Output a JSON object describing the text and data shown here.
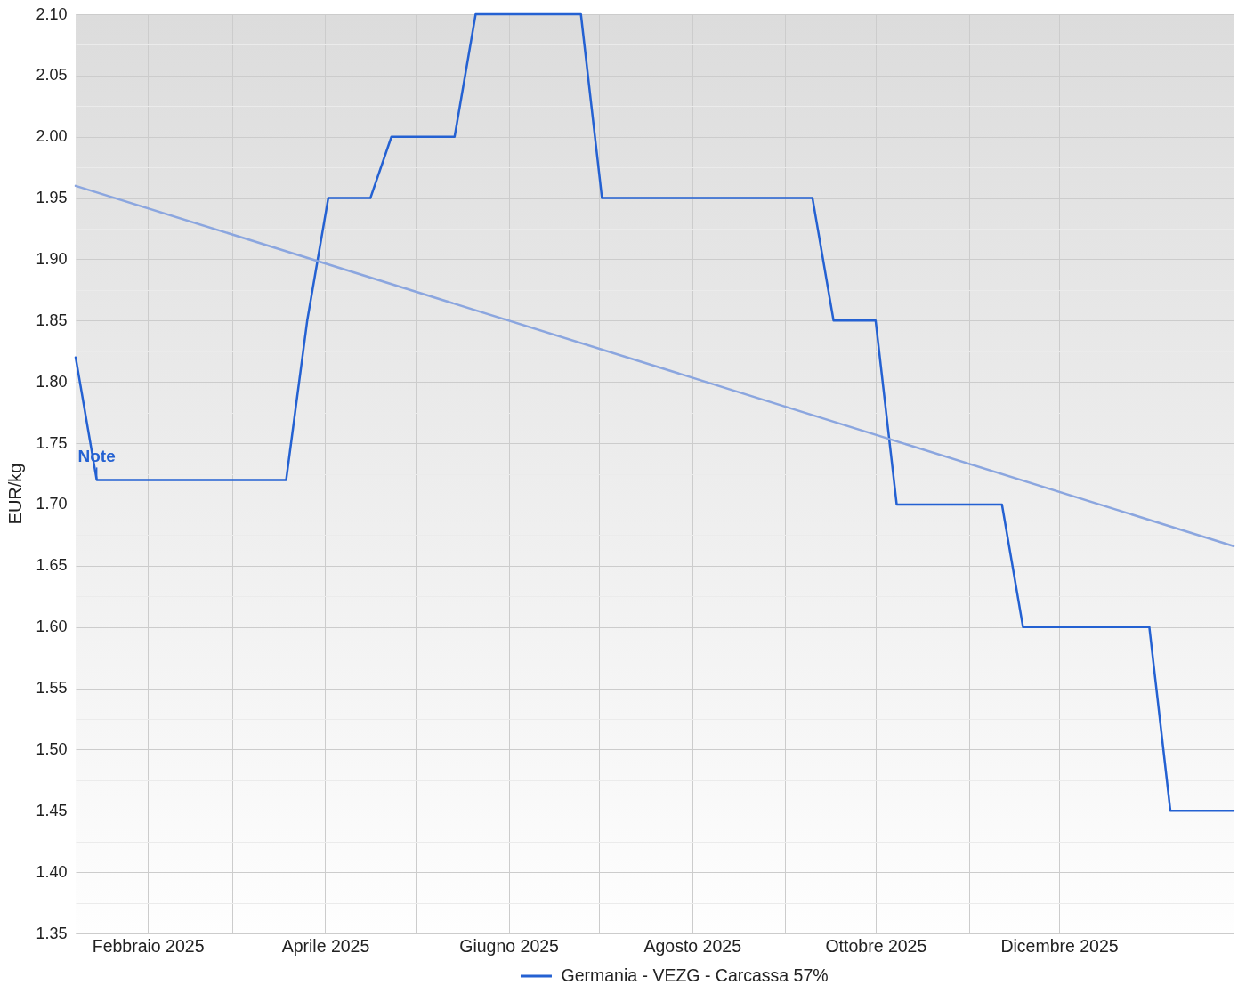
{
  "chart_data": {
    "type": "line",
    "ylabel": "EUR/kg",
    "legend": "bottom",
    "grid": true,
    "xlim": [
      "2025-01-08",
      "2026-01-28"
    ],
    "xticks": [
      {
        "value": "2025-02-01",
        "label": "Febbraio 2025"
      },
      {
        "value": "2025-03-01",
        "label": null
      },
      {
        "value": "2025-04-01",
        "label": "Aprile 2025"
      },
      {
        "value": "2025-05-01",
        "label": null
      },
      {
        "value": "2025-06-01",
        "label": "Giugno 2025"
      },
      {
        "value": "2025-07-01",
        "label": null
      },
      {
        "value": "2025-08-01",
        "label": "Agosto 2025"
      },
      {
        "value": "2025-09-01",
        "label": null
      },
      {
        "value": "2025-10-01",
        "label": "Ottobre 2025"
      },
      {
        "value": "2025-11-01",
        "label": null
      },
      {
        "value": "2025-12-01",
        "label": "Dicembre 2025"
      },
      {
        "value": "2026-01-01",
        "label": null
      }
    ],
    "ylim": [
      1.35,
      2.1
    ],
    "yticks": [
      {
        "value": 1.35,
        "label": "1.35"
      },
      {
        "value": 1.375,
        "label": null
      },
      {
        "value": 1.4,
        "label": "1.40"
      },
      {
        "value": 1.425,
        "label": null
      },
      {
        "value": 1.45,
        "label": "1.45"
      },
      {
        "value": 1.475,
        "label": null
      },
      {
        "value": 1.5,
        "label": "1.50"
      },
      {
        "value": 1.525,
        "label": null
      },
      {
        "value": 1.55,
        "label": "1.55"
      },
      {
        "value": 1.575,
        "label": null
      },
      {
        "value": 1.6,
        "label": "1.60"
      },
      {
        "value": 1.625,
        "label": null
      },
      {
        "value": 1.65,
        "label": "1.65"
      },
      {
        "value": 1.675,
        "label": null
      },
      {
        "value": 1.7,
        "label": "1.70"
      },
      {
        "value": 1.725,
        "label": null
      },
      {
        "value": 1.75,
        "label": "1.75"
      },
      {
        "value": 1.775,
        "label": null
      },
      {
        "value": 1.8,
        "label": "1.80"
      },
      {
        "value": 1.825,
        "label": null
      },
      {
        "value": 1.85,
        "label": "1.85"
      },
      {
        "value": 1.875,
        "label": null
      },
      {
        "value": 1.9,
        "label": "1.90"
      },
      {
        "value": 1.925,
        "label": null
      },
      {
        "value": 1.95,
        "label": "1.95"
      },
      {
        "value": 1.975,
        "label": null
      },
      {
        "value": 2.0,
        "label": "2.00"
      },
      {
        "value": 2.025,
        "label": null
      },
      {
        "value": 2.05,
        "label": "2.05"
      },
      {
        "value": 2.075,
        "label": null
      },
      {
        "value": 2.1,
        "label": "2.10"
      }
    ],
    "series": [
      {
        "name": "Germania - VEZG - Carcassa 57%",
        "color": "#2461d2",
        "x": [
          "2025-01-08",
          "2025-01-15",
          "2025-03-19",
          "2025-03-26",
          "2025-04-02",
          "2025-04-16",
          "2025-04-23",
          "2025-05-14",
          "2025-05-21",
          "2025-06-25",
          "2025-07-02",
          "2025-09-10",
          "2025-09-17",
          "2025-10-01",
          "2025-10-08",
          "2025-11-12",
          "2025-11-19",
          "2025-12-31",
          "2026-01-07",
          "2026-01-28"
        ],
        "values": [
          1.82,
          1.72,
          1.72,
          1.85,
          1.95,
          1.95,
          2.0,
          2.0,
          2.1,
          2.1,
          1.95,
          1.95,
          1.85,
          1.85,
          1.7,
          1.7,
          1.6,
          1.6,
          1.45,
          1.45
        ]
      },
      {
        "type": "line",
        "color": "#8ba6df",
        "x": [
          "2025-01-08",
          "2026-01-28"
        ],
        "values": [
          1.96,
          1.666
        ]
      }
    ],
    "annotations": [
      {
        "text": "Note",
        "x": "2025-01-15",
        "y": 1.72
      }
    ]
  }
}
